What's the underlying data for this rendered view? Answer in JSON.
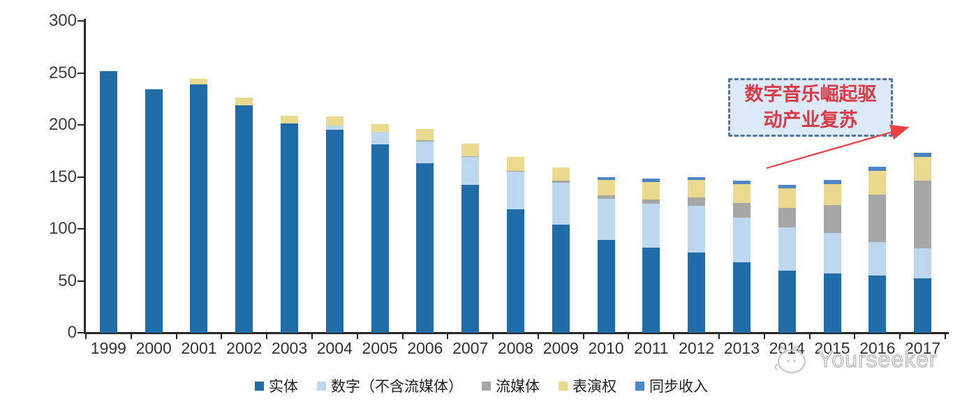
{
  "chart_data": {
    "type": "bar",
    "stacked": true,
    "title": "",
    "categories": [
      "1999",
      "2000",
      "2001",
      "2002",
      "2003",
      "2004",
      "2005",
      "2006",
      "2007",
      "2008",
      "2009",
      "2010",
      "2011",
      "2012",
      "2013",
      "2014",
      "2015",
      "2016",
      "2017"
    ],
    "series": [
      {
        "name": "实体",
        "color": "#1F6CA8",
        "values": [
          252,
          234,
          239,
          219,
          201,
          195,
          181,
          163,
          142,
          119,
          104,
          89,
          82,
          77,
          68,
          60,
          57,
          55,
          52
        ]
      },
      {
        "name": "数字（不含流媒体）",
        "color": "#BDD7EE",
        "values": [
          0,
          0,
          0,
          0,
          0,
          4,
          12,
          21,
          27,
          36,
          40,
          40,
          42,
          45,
          43,
          41,
          39,
          32,
          29
        ]
      },
      {
        "name": "流媒体",
        "color": "#A6A6A6",
        "values": [
          0,
          0,
          0,
          0,
          0,
          0,
          0,
          1,
          1,
          1,
          2,
          3,
          4,
          8,
          14,
          19,
          27,
          46,
          65
        ]
      },
      {
        "name": "表演权",
        "color": "#EBD98F",
        "values": [
          0,
          0,
          5,
          7,
          8,
          9,
          8,
          11,
          12,
          13,
          13,
          15,
          17,
          17,
          18,
          19,
          20,
          23,
          23
        ]
      },
      {
        "name": "同步收入",
        "color": "#4E86C5",
        "values": [
          0,
          0,
          0,
          0,
          0,
          0,
          0,
          0,
          0,
          0,
          0,
          3,
          3,
          3,
          3,
          3,
          4,
          4,
          4
        ]
      }
    ],
    "xlabel": "",
    "ylabel": "",
    "ylim": [
      0,
      300
    ],
    "yticks": [
      0,
      50,
      100,
      150,
      200,
      250,
      300
    ],
    "grid": false,
    "legend_position": "bottom"
  },
  "annotation": {
    "text": "数字音乐崛起驱\n动产业复苏",
    "text_color": "#D93A45",
    "box_fill": "#DCE9F7",
    "border_color": "#51759E",
    "arrow_color": "#EC4141"
  },
  "watermark": {
    "text": "Yourseeker",
    "color": "#B9B9B9",
    "logo_icon": "cat-mascot"
  }
}
